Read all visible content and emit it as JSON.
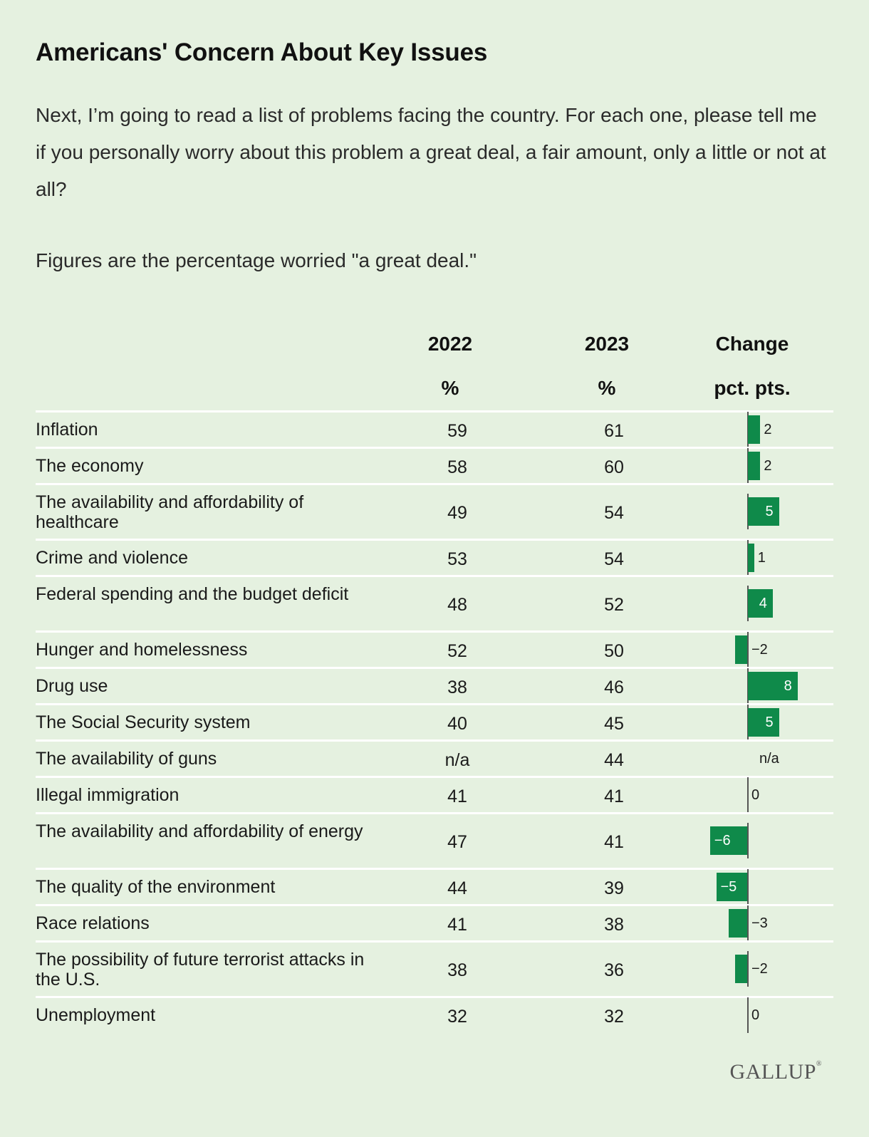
{
  "title": "Americans' Concern About Key Issues",
  "question": "Next, I’m going to read a list of problems facing the country. For each one, please tell me if you personally worry about this problem a great deal, a fair amount, only a little or not at all?",
  "note": "Figures are the percentage worried \"a great deal.\"",
  "columns": {
    "y2022_top": "2022",
    "y2022_bottom": "%",
    "y2023_top": "2023",
    "y2023_bottom": "%",
    "change_top": "Change",
    "change_bottom": "pct. pts."
  },
  "logo": "GALLUP",
  "logo_mark": "®",
  "colors": {
    "background": "#e5f1e0",
    "bar": "#0f8a4a",
    "divider": "#ffffff"
  },
  "chart_data": {
    "type": "table",
    "title": "Americans' Concern About Key Issues",
    "columns": [
      "2022 %",
      "2023 %",
      "Change pct. pts."
    ],
    "rows": [
      {
        "label": "Inflation",
        "y2022": "59",
        "y2023": "61",
        "change": 2
      },
      {
        "label": "The economy",
        "y2022": "58",
        "y2023": "60",
        "change": 2
      },
      {
        "label": "The availability and affordability of healthcare",
        "y2022": "49",
        "y2023": "54",
        "change": 5
      },
      {
        "label": "Crime and violence",
        "y2022": "53",
        "y2023": "54",
        "change": 1
      },
      {
        "label": "Federal spending and the budget deficit",
        "y2022": "48",
        "y2023": "52",
        "change": 4
      },
      {
        "label": "Hunger and homelessness",
        "y2022": "52",
        "y2023": "50",
        "change": -2
      },
      {
        "label": "Drug use",
        "y2022": "38",
        "y2023": "46",
        "change": 8
      },
      {
        "label": "The Social Security system",
        "y2022": "40",
        "y2023": "45",
        "change": 5
      },
      {
        "label": "The availability of guns",
        "y2022": "n/a",
        "y2023": "44",
        "change": "n/a"
      },
      {
        "label": "Illegal immigration",
        "y2022": "41",
        "y2023": "41",
        "change": 0
      },
      {
        "label": "The availability and affordability of energy",
        "y2022": "47",
        "y2023": "41",
        "change": -6
      },
      {
        "label": "The quality of the environment",
        "y2022": "44",
        "y2023": "39",
        "change": -5
      },
      {
        "label": "Race relations",
        "y2022": "41",
        "y2023": "38",
        "change": -3
      },
      {
        "label": "The possibility of future terrorist attacks in the U.S.",
        "y2022": "38",
        "y2023": "36",
        "change": -2
      },
      {
        "label": "Unemployment",
        "y2022": "32",
        "y2023": "32",
        "change": 0
      }
    ]
  }
}
